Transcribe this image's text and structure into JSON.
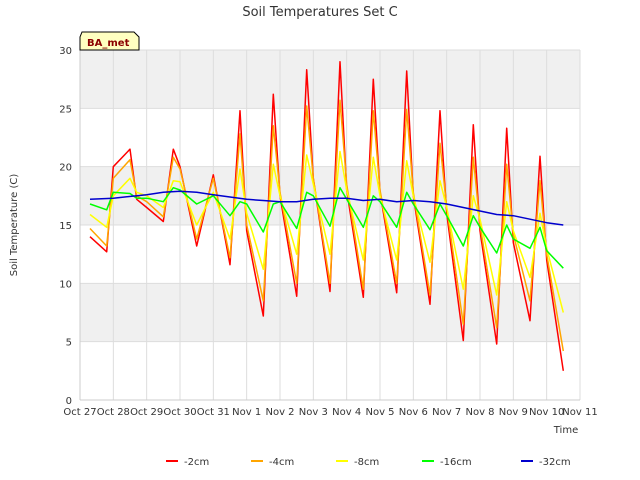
{
  "chart_data": {
    "type": "line",
    "title": "Soil Temperatures Set C",
    "xlabel": "Time",
    "ylabel": "Soil Temperature (C)",
    "badge": "BA_met",
    "ylim": [
      0,
      30
    ],
    "y_ticks": [
      "0",
      "5",
      "10",
      "15",
      "20",
      "25",
      "30"
    ],
    "xlim": [
      0,
      15
    ],
    "x_ticks": [
      "Oct 27",
      "Oct 28",
      "Oct 29",
      "Oct 30",
      "Oct 31",
      "Nov 1",
      "Nov 2",
      "Nov 3",
      "Nov 4",
      "Nov 5",
      "Nov 6",
      "Nov 7",
      "Nov 8",
      "Nov 9",
      "Nov 10",
      "Nov 11"
    ],
    "grid": true,
    "legend_position": "bottom",
    "series": [
      {
        "name": "-2cm",
        "color": "#ff0000",
        "x": [
          0.3,
          0.8,
          1.0,
          1.5,
          1.7,
          2.0,
          2.5,
          2.8,
          3.0,
          3.5,
          4.0,
          4.5,
          4.8,
          5.0,
          5.5,
          5.8,
          6.0,
          6.5,
          6.8,
          7.0,
          7.5,
          7.8,
          8.0,
          8.5,
          8.8,
          9.0,
          9.5,
          9.8,
          10.0,
          10.5,
          10.8,
          11.0,
          11.5,
          11.8,
          12.0,
          12.5,
          12.8,
          13.0,
          13.5,
          13.8,
          14.0,
          14.5
        ],
        "y": [
          14.0,
          12.7,
          20.0,
          21.5,
          17.2,
          16.5,
          15.3,
          21.5,
          20.0,
          13.2,
          19.3,
          11.6,
          24.8,
          14.5,
          7.2,
          26.2,
          17.5,
          8.9,
          28.3,
          19.0,
          9.3,
          29.0,
          18.0,
          8.8,
          27.5,
          17.8,
          9.2,
          28.2,
          17.5,
          8.2,
          24.8,
          16.0,
          5.1,
          23.6,
          14.5,
          4.8,
          23.3,
          13.5,
          6.8,
          20.9,
          12.0,
          2.5
        ]
      },
      {
        "name": "-4cm",
        "color": "#ffa500",
        "x": [
          0.3,
          0.8,
          1.0,
          1.5,
          1.7,
          2.0,
          2.5,
          2.8,
          3.0,
          3.5,
          4.0,
          4.5,
          4.8,
          5.0,
          5.5,
          5.8,
          6.0,
          6.5,
          6.8,
          7.0,
          7.5,
          7.8,
          8.0,
          8.5,
          8.8,
          9.0,
          9.5,
          9.8,
          10.0,
          10.5,
          10.8,
          11.0,
          11.5,
          11.8,
          12.0,
          12.5,
          12.8,
          13.0,
          13.5,
          13.8,
          14.0,
          14.5
        ],
        "y": [
          14.7,
          13.2,
          19.0,
          20.6,
          17.5,
          17.0,
          15.7,
          20.8,
          19.8,
          13.8,
          19.0,
          12.2,
          22.8,
          15.0,
          8.5,
          23.5,
          17.8,
          10.0,
          25.2,
          19.0,
          10.0,
          25.7,
          18.5,
          9.5,
          24.8,
          18.0,
          10.0,
          24.9,
          17.8,
          9.0,
          22.0,
          16.5,
          6.5,
          20.8,
          15.0,
          6.2,
          20.2,
          14.2,
          8.5,
          18.8,
          12.5,
          4.2
        ]
      },
      {
        "name": "-8cm",
        "color": "#ffff00",
        "x": [
          0.3,
          0.8,
          1.0,
          1.5,
          1.7,
          2.0,
          2.5,
          2.8,
          3.0,
          3.5,
          4.0,
          4.5,
          4.8,
          5.0,
          5.5,
          5.8,
          6.0,
          6.5,
          6.8,
          7.0,
          7.5,
          7.8,
          8.0,
          8.5,
          8.8,
          9.0,
          9.5,
          9.8,
          10.0,
          10.5,
          10.8,
          11.0,
          11.5,
          11.8,
          12.0,
          12.5,
          12.8,
          13.0,
          13.5,
          13.8,
          14.0,
          14.5
        ],
        "y": [
          15.9,
          14.8,
          17.5,
          19.0,
          17.8,
          17.5,
          16.5,
          18.8,
          18.7,
          15.0,
          17.8,
          13.8,
          19.8,
          16.0,
          11.2,
          20.2,
          17.5,
          12.5,
          21.0,
          18.5,
          12.5,
          21.3,
          18.0,
          12.0,
          20.8,
          17.5,
          12.0,
          20.5,
          17.5,
          11.8,
          18.8,
          16.5,
          9.5,
          17.5,
          15.5,
          9.0,
          17.0,
          14.5,
          10.5,
          16.0,
          13.0,
          7.5
        ]
      },
      {
        "name": "-16cm",
        "color": "#00ff00",
        "x": [
          0.3,
          0.8,
          1.0,
          1.5,
          1.7,
          2.0,
          2.5,
          2.8,
          3.0,
          3.5,
          4.0,
          4.5,
          4.8,
          5.0,
          5.5,
          5.8,
          6.0,
          6.5,
          6.8,
          7.0,
          7.5,
          7.8,
          8.0,
          8.5,
          8.8,
          9.0,
          9.5,
          9.8,
          10.0,
          10.5,
          10.8,
          11.0,
          11.5,
          11.8,
          12.0,
          12.5,
          12.8,
          13.0,
          13.5,
          13.8,
          14.0,
          14.5
        ],
        "y": [
          16.8,
          16.3,
          17.8,
          17.7,
          17.3,
          17.3,
          17.0,
          18.2,
          18.0,
          16.8,
          17.5,
          15.8,
          17.0,
          16.8,
          14.4,
          16.8,
          17.0,
          14.7,
          17.8,
          17.5,
          14.9,
          18.2,
          17.2,
          14.8,
          17.5,
          17.0,
          14.8,
          17.8,
          16.8,
          14.6,
          16.8,
          15.8,
          13.2,
          15.8,
          14.8,
          12.6,
          15.0,
          13.8,
          13.0,
          14.8,
          12.8,
          11.3
        ]
      },
      {
        "name": "-32cm",
        "color": "#0000cd",
        "x": [
          0.3,
          1.0,
          2.0,
          2.5,
          3.0,
          3.5,
          4.0,
          4.5,
          5.0,
          5.5,
          6.0,
          6.5,
          7.0,
          7.5,
          8.0,
          8.5,
          9.0,
          9.5,
          10.0,
          10.5,
          11.0,
          11.5,
          12.0,
          12.5,
          13.0,
          13.5,
          14.0,
          14.5
        ],
        "y": [
          17.2,
          17.3,
          17.6,
          17.8,
          17.9,
          17.8,
          17.6,
          17.4,
          17.2,
          17.1,
          17.0,
          17.0,
          17.2,
          17.3,
          17.3,
          17.1,
          17.2,
          17.0,
          17.1,
          17.0,
          16.8,
          16.5,
          16.2,
          15.9,
          15.8,
          15.5,
          15.2,
          15.0
        ]
      }
    ]
  }
}
